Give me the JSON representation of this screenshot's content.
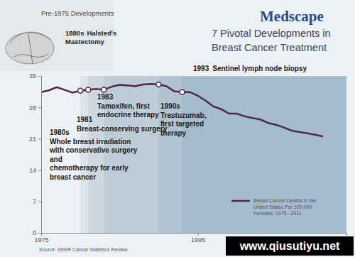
{
  "chart_data": {
    "type": "line",
    "brand": "Medscape",
    "title": "7 Pivotal Developments in Breast Cancer Treatment",
    "inset": {
      "title": "Pre-1975 Developments",
      "label": "1880s",
      "lines": [
        "Halsted's",
        "Mastectomy"
      ]
    },
    "x": [
      1975,
      1976,
      1977,
      1978,
      1979,
      1980,
      1981,
      1982,
      1983,
      1984,
      1985,
      1986,
      1987,
      1988,
      1989,
      1990,
      1991,
      1992,
      1993,
      1994,
      1995,
      1996,
      1997,
      1998,
      1999,
      2000,
      2001,
      2002,
      2003,
      2004,
      2005,
      2006,
      2007,
      2008,
      2009,
      2010,
      2011
    ],
    "series": [
      {
        "name": "Breast Cancer Deaths in the United States Per 100,000 Females, 1975 - 2011",
        "color": "#4a2c4a",
        "values": [
          31.4,
          31.8,
          32.5,
          31.9,
          31.3,
          31.7,
          31.9,
          32.1,
          31.9,
          32.6,
          33.0,
          32.9,
          32.7,
          33.1,
          33.2,
          33.1,
          32.7,
          31.6,
          31.4,
          31.4,
          30.6,
          29.5,
          28.2,
          27.6,
          26.6,
          26.6,
          26.0,
          25.6,
          25.3,
          24.5,
          24.1,
          23.5,
          22.8,
          22.5,
          22.2,
          21.9,
          21.5
        ]
      }
    ],
    "xlim": [
      1975,
      2014
    ],
    "xticks": [
      1975,
      1995
    ],
    "ylim": [
      0,
      35
    ],
    "yticks": [
      0,
      7,
      14,
      21,
      28,
      35
    ],
    "grid": false,
    "legend": "lower right",
    "annotations": [
      {
        "x": 1980,
        "label": "1980s",
        "lines": [
          "Whole breast irradiation",
          "with conservative surgery",
          "and",
          "chemotherapy for early",
          "breast cancer"
        ]
      },
      {
        "x": 1981,
        "label": "1981",
        "lines": [
          "Breast-conserving surgery"
        ]
      },
      {
        "x": 1983,
        "label": "1983",
        "lines": [
          "Tamoxifen, first",
          "endocrine therapy"
        ]
      },
      {
        "x": 1990,
        "label": "1990s",
        "lines": [
          "Trastuzumab,",
          "first targeted",
          "therapy"
        ]
      },
      {
        "x": 1993,
        "label": "1993",
        "lines": [
          "Sentinel lymph node biopsy"
        ]
      }
    ],
    "source": "Source: SEER Cancer Statistics Review",
    "watermark": "www.qiusutiyu.net"
  }
}
